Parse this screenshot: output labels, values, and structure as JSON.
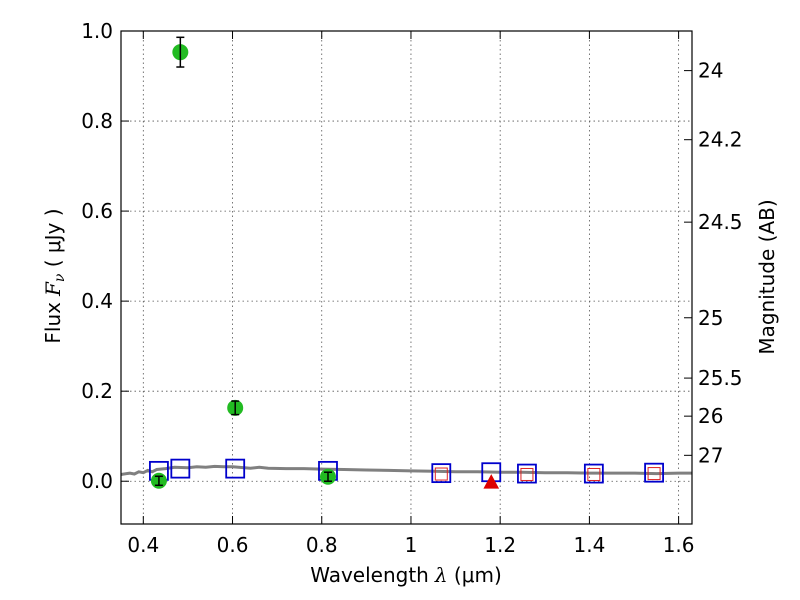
{
  "chart_data": {
    "type": "scatter",
    "title": "",
    "xlabel": {
      "prefix": "Wavelength",
      "symbol": "λ",
      "open": " (",
      "unit": "μm",
      "close": ")"
    },
    "ylabel": {
      "prefix": "Flux",
      "symbol": "F",
      "subscript": "ν",
      "open": " ( ",
      "unit": "μJy",
      "close": " )"
    },
    "y2label": "Magnitude (AB)",
    "xlim": [
      0.35,
      1.63
    ],
    "ylim": [
      -0.095,
      1.0
    ],
    "xticks": [
      0.4,
      0.6,
      0.8,
      1.0,
      1.2,
      1.4,
      1.6
    ],
    "xtick_labels": [
      "0.4",
      "0.6",
      "0.8",
      "1",
      "1.2",
      "1.4",
      "1.6"
    ],
    "yticks": [
      0.0,
      0.2,
      0.4,
      0.6,
      0.8,
      1.0
    ],
    "ytick_labels": [
      "0.0",
      "0.2",
      "0.4",
      "0.6",
      "0.8",
      "1.0"
    ],
    "y2ticks": [
      {
        "mag": 24,
        "label": "24"
      },
      {
        "mag": 24.2,
        "label": "24.2"
      },
      {
        "mag": 24.5,
        "label": "24.5"
      },
      {
        "mag": 25,
        "label": "25"
      },
      {
        "mag": 25.5,
        "label": "25.5"
      },
      {
        "mag": 26,
        "label": "26"
      },
      {
        "mag": 27,
        "label": "27"
      }
    ],
    "grid": true,
    "colors": {
      "detections": "#22bb22",
      "model_squares": "#0000cc",
      "red_squares": "#dd2222",
      "upper_limit": "#dd0000",
      "sed_curve": "#808080",
      "grid": "#555555"
    },
    "series": [
      {
        "kind": "detections",
        "points": [
          {
            "x": 0.435,
            "y": 0.001,
            "err": 0.01
          },
          {
            "x": 0.483,
            "y": 0.953,
            "err": 0.033
          },
          {
            "x": 0.606,
            "y": 0.163,
            "err": 0.015
          },
          {
            "x": 0.814,
            "y": 0.01,
            "err": 0.01
          }
        ]
      },
      {
        "kind": "model_squares",
        "points": [
          {
            "x": 0.435,
            "y": 0.023
          },
          {
            "x": 0.483,
            "y": 0.028
          },
          {
            "x": 0.606,
            "y": 0.028
          },
          {
            "x": 0.814,
            "y": 0.023
          },
          {
            "x": 1.068,
            "y": 0.018
          },
          {
            "x": 1.18,
            "y": 0.02
          },
          {
            "x": 1.26,
            "y": 0.017
          },
          {
            "x": 1.41,
            "y": 0.017
          },
          {
            "x": 1.545,
            "y": 0.019
          }
        ]
      },
      {
        "kind": "red_squares",
        "points": [
          {
            "x": 1.068,
            "y": 0.016
          },
          {
            "x": 1.26,
            "y": 0.015
          },
          {
            "x": 1.41,
            "y": 0.015
          },
          {
            "x": 1.545,
            "y": 0.017
          }
        ]
      },
      {
        "kind": "upper_limit",
        "points": [
          {
            "x": 1.18,
            "y": -0.002,
            "err": 0.008
          }
        ]
      },
      {
        "kind": "sed_curve",
        "points": [
          {
            "x": 0.35,
            "y": 0.015
          },
          {
            "x": 0.37,
            "y": 0.018
          },
          {
            "x": 0.38,
            "y": 0.016
          },
          {
            "x": 0.39,
            "y": 0.021
          },
          {
            "x": 0.4,
            "y": 0.019
          },
          {
            "x": 0.41,
            "y": 0.024
          },
          {
            "x": 0.42,
            "y": 0.021
          },
          {
            "x": 0.43,
            "y": 0.026
          },
          {
            "x": 0.45,
            "y": 0.028
          },
          {
            "x": 0.47,
            "y": 0.031
          },
          {
            "x": 0.5,
            "y": 0.03
          },
          {
            "x": 0.52,
            "y": 0.032
          },
          {
            "x": 0.54,
            "y": 0.031
          },
          {
            "x": 0.56,
            "y": 0.033
          },
          {
            "x": 0.58,
            "y": 0.032
          },
          {
            "x": 0.6,
            "y": 0.032
          },
          {
            "x": 0.64,
            "y": 0.029
          },
          {
            "x": 0.66,
            "y": 0.031
          },
          {
            "x": 0.68,
            "y": 0.029
          },
          {
            "x": 0.72,
            "y": 0.028
          },
          {
            "x": 0.76,
            "y": 0.028
          },
          {
            "x": 0.8,
            "y": 0.027
          },
          {
            "x": 0.85,
            "y": 0.026
          },
          {
            "x": 0.9,
            "y": 0.025
          },
          {
            "x": 0.95,
            "y": 0.024
          },
          {
            "x": 1.0,
            "y": 0.023
          },
          {
            "x": 1.05,
            "y": 0.022
          },
          {
            "x": 1.1,
            "y": 0.021
          },
          {
            "x": 1.15,
            "y": 0.021
          },
          {
            "x": 1.2,
            "y": 0.02
          },
          {
            "x": 1.25,
            "y": 0.02
          },
          {
            "x": 1.3,
            "y": 0.019
          },
          {
            "x": 1.35,
            "y": 0.019
          },
          {
            "x": 1.4,
            "y": 0.018
          },
          {
            "x": 1.45,
            "y": 0.018
          },
          {
            "x": 1.5,
            "y": 0.018
          },
          {
            "x": 1.55,
            "y": 0.017
          },
          {
            "x": 1.6,
            "y": 0.018
          },
          {
            "x": 1.63,
            "y": 0.018
          }
        ]
      }
    ]
  }
}
